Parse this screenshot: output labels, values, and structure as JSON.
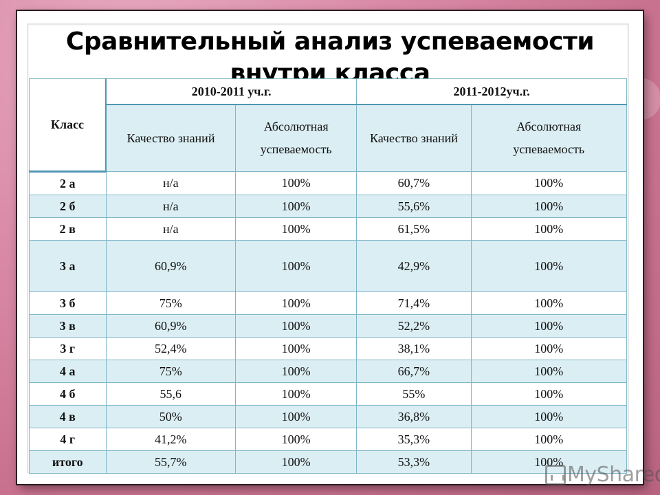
{
  "slide": {
    "title": "Сравнительный анализ успеваемости внутри класса",
    "table": {
      "header_class": "Класс",
      "years": [
        {
          "label": "2010-2011 уч.г."
        },
        {
          "label": "2011-2012уч.г."
        }
      ],
      "subheaders": [
        "Качество знаний",
        "Абсолютная успеваемость",
        "Качество знаний",
        "Абсолютная успеваемость"
      ],
      "rows": [
        {
          "class": "2 а",
          "q1": "н/а",
          "a1": "100%",
          "q2": "60,7%",
          "a2": "100%"
        },
        {
          "class": "2 б",
          "q1": "н/а",
          "a1": "100%",
          "q2": "55,6%",
          "a2": "100%"
        },
        {
          "class": "2 в",
          "q1": "н/а",
          "a1": "100%",
          "q2": "61,5%",
          "a2": "100%"
        },
        {
          "class": "3 а",
          "q1": "60,9%",
          "a1": "100%",
          "q2": "42,9%",
          "a2": "100%"
        },
        {
          "class": "3 б",
          "q1": "75%",
          "a1": "100%",
          "q2": "71,4%",
          "a2": "100%"
        },
        {
          "class": "3 в",
          "q1": "60,9%",
          "a1": "100%",
          "q2": "52,2%",
          "a2": "100%"
        },
        {
          "class": "3 г",
          "q1": "52,4%",
          "a1": "100%",
          "q2": "38,1%",
          "a2": "100%"
        },
        {
          "class": "4 а",
          "q1": "75%",
          "a1": "100%",
          "q2": "66,7%",
          "a2": "100%"
        },
        {
          "class": "4 б",
          "q1": "55,6",
          "a1": "100%",
          "q2": "55%",
          "a2": "100%"
        },
        {
          "class": "4 в",
          "q1": "50%",
          "a1": "100%",
          "q2": "36,8%",
          "a2": "100%"
        },
        {
          "class": "4 г",
          "q1": "41,2%",
          "a1": "100%",
          "q2": "35,3%",
          "a2": "100%"
        },
        {
          "class": "итого",
          "q1": "55,7%",
          "a1": "100%",
          "q2": "53,3%",
          "a2": "100%"
        }
      ]
    }
  },
  "watermark": {
    "text": "MyShared"
  },
  "colors": {
    "row_alt": "#dbeef3",
    "border": "#7fb6c8",
    "background": "#d98aa7"
  }
}
